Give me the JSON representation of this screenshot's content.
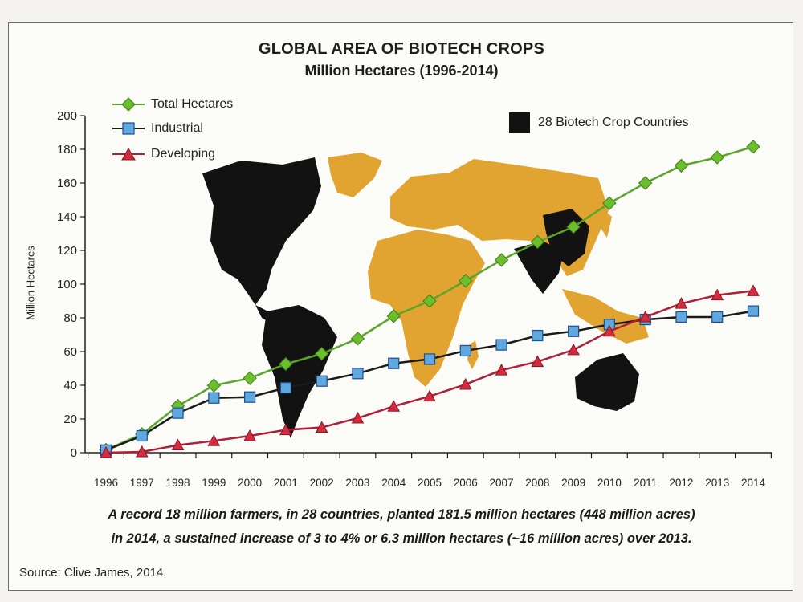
{
  "header": {
    "title": "GLOBAL AREA OF BIOTECH CROPS",
    "subtitle": "Million Hectares (1996-2014)"
  },
  "legend": {
    "total": "Total Hectares",
    "industrial": "Industrial",
    "developing": "Developing",
    "countries": "28 Biotech Crop Countries"
  },
  "caption": {
    "line1": "A record 18 million farmers, in 28 countries, planted 181.5 million hectares (448 million acres)",
    "line2": "in 2014, a sustained increase of 3 to 4% or 6.3 million hectares (~16 million acres) over 2013."
  },
  "source": "Source: Clive James, 2014.",
  "colors": {
    "total": "#5aa62b",
    "industrial": "#1d4f8c",
    "industrial_fill": "#5fa8e0",
    "developing": "#b01f3a",
    "developing_fill": "#d12d3e",
    "map_land": "#e2a431",
    "map_biotech": "#121212"
  },
  "chart_data": {
    "type": "line",
    "title": "GLOBAL AREA OF BIOTECH CROPS",
    "subtitle": "Million Hectares (1996-2014)",
    "xlabel": "",
    "ylabel": "Million Hectares",
    "ylim": [
      0,
      200
    ],
    "yticks": [
      0,
      20,
      40,
      60,
      80,
      100,
      120,
      140,
      160,
      180,
      200
    ],
    "grid": false,
    "legend_position": "top-left",
    "x": [
      "1996",
      "1997",
      "1998",
      "1999",
      "2000",
      "2001",
      "2002",
      "2003",
      "2004",
      "2005",
      "2006",
      "2007",
      "2008",
      "2009",
      "2010",
      "2011",
      "2012",
      "2013",
      "2014"
    ],
    "series": [
      {
        "name": "Total Hectares",
        "marker": "diamond",
        "values": [
          1.7,
          11,
          27.8,
          39.9,
          44.2,
          52.6,
          58.7,
          67.7,
          81,
          90,
          102,
          114.3,
          125,
          134,
          148,
          160,
          170.3,
          175.2,
          181.5
        ]
      },
      {
        "name": "Industrial",
        "marker": "square",
        "values": [
          1.5,
          10,
          23.5,
          32.5,
          33,
          38.5,
          42.5,
          47,
          53,
          55.5,
          60.5,
          64,
          69.5,
          72,
          76,
          79,
          80.5,
          80.5,
          84
        ]
      },
      {
        "name": "Developing",
        "marker": "triangle",
        "values": [
          0,
          0.5,
          4.5,
          7,
          10,
          13.5,
          15,
          20.5,
          27.5,
          33.5,
          40.5,
          49,
          54,
          61,
          72,
          80.5,
          88.5,
          93.5,
          96
        ]
      }
    ]
  }
}
